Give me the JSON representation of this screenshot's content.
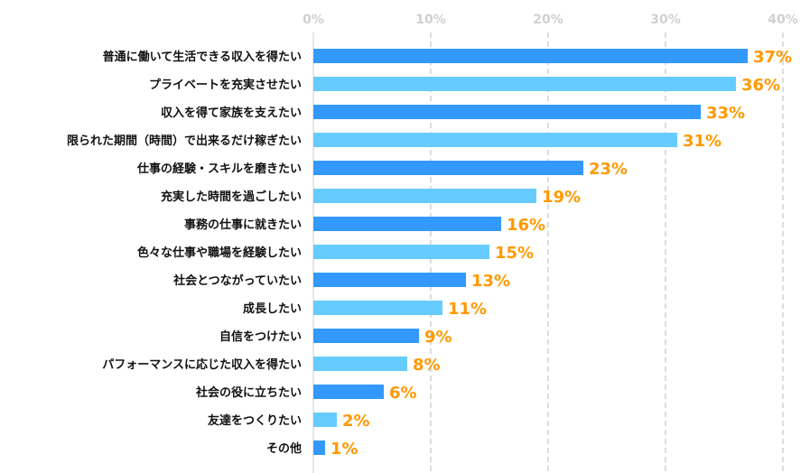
{
  "chart_data": {
    "type": "bar",
    "orientation": "horizontal",
    "categories": [
      "普通に働いて生活できる収入を得たい",
      "プライベートを充実させたい",
      "収入を得て家族を支えたい",
      "限られた期間（時間）で出来るだけ稼ぎたい",
      "仕事の経験・スキルを磨きたい",
      "充実した時間を過ごしたい",
      "事務の仕事に就きたい",
      "色々な仕事や職場を経験したい",
      "社会とつながっていたい",
      "成長したい",
      "自信をつけたい",
      "パフォーマンスに応じた収入を得たい",
      "社会の役に立ちたい",
      "友達をつくりたい",
      "その他"
    ],
    "values": [
      37,
      36,
      33,
      31,
      23,
      19,
      16,
      15,
      13,
      11,
      9,
      8,
      6,
      2,
      1
    ],
    "value_labels": [
      "37%",
      "36%",
      "33%",
      "31%",
      "23%",
      "19%",
      "16%",
      "15%",
      "13%",
      "11%",
      "9%",
      "8%",
      "6%",
      "2%",
      "1%"
    ],
    "xlim": [
      0,
      40
    ],
    "x_ticks": [
      "0%",
      "10%",
      "20%",
      "30%",
      "40%"
    ],
    "x_tick_values": [
      0,
      10,
      20,
      30,
      40
    ],
    "axis_position": "top",
    "grid": true,
    "colors": {
      "bar_odd": "#3399ff",
      "bar_even": "#66ccff",
      "value_label": "#ff9900",
      "grid": "#d0d0d0"
    }
  }
}
